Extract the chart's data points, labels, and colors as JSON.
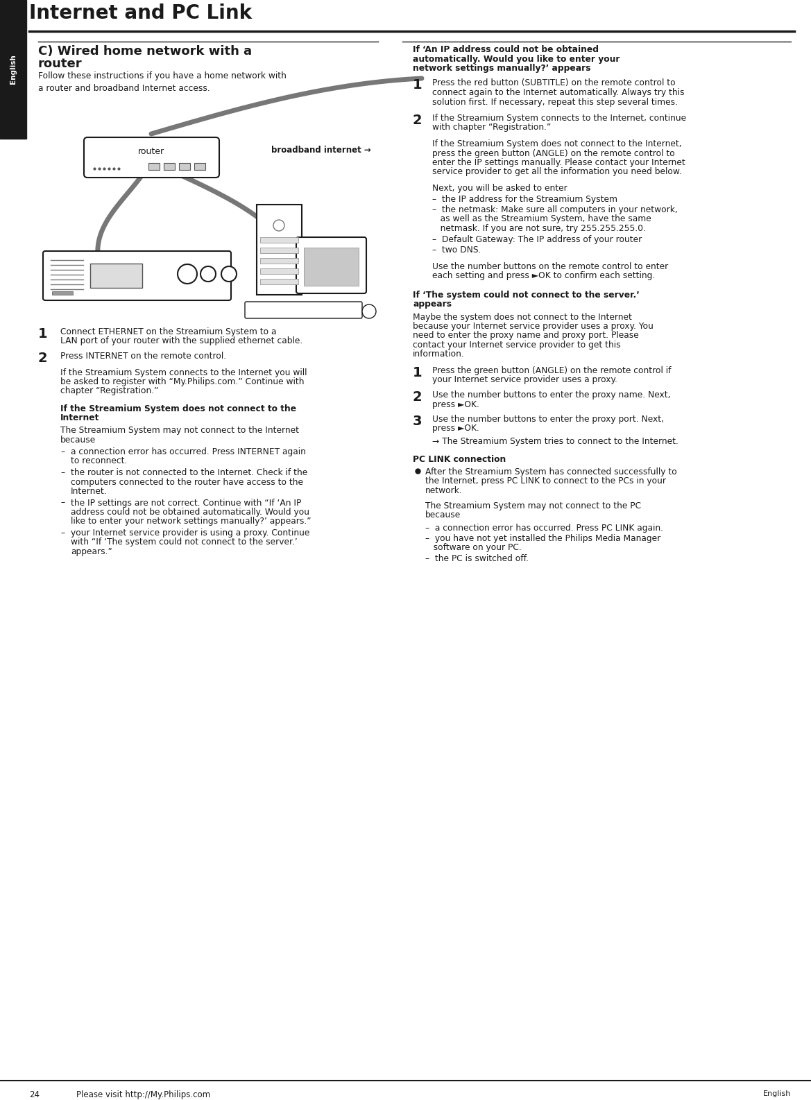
{
  "page_title": "Internet and PC Link",
  "bg_color": "#ffffff",
  "sidebar_color": "#1a1a1a",
  "sidebar_text": "English",
  "section_title_line1": "C) Wired home network with a",
  "section_title_line2": "router",
  "section_subtitle": "Follow these instructions if you have a home network with\na router and broadband Internet access.",
  "diagram_label_router": "router",
  "diagram_label_broadband": "broadband internet →",
  "step1_num": "1",
  "step1_lines": [
    "Connect ETHERNET on the Streamium System to a",
    "LAN port of your router with the supplied ethernet cable."
  ],
  "step2_num": "2",
  "step2_text": "Press INTERNET on the remote control.",
  "step2_para1_lines": [
    "If the Streamium System connects to the Internet you will",
    "be asked to register with “My.Philips.com.” Continue with",
    "chapter “Registration.”"
  ],
  "bold_head_lines": [
    "If the Streamium System does not connect to the",
    "Internet"
  ],
  "step2_para2": "The Streamium System may not connect to the Internet\nbecause",
  "bullet1_lines": [
    "a connection error has occurred. Press INTERNET again",
    "to reconnect."
  ],
  "bullet2_lines": [
    "the router is not connected to the Internet. Check if the",
    "computers connected to the router have access to the",
    "Internet."
  ],
  "bullet3_lines": [
    "the IP settings are not correct. Continue with “If ‘An IP",
    "address could not be obtained automatically. Would you",
    "like to enter your network settings manually?’ appears.”"
  ],
  "bullet4_lines": [
    "your Internet service provider is using a proxy. Continue",
    "with “If ‘The system could not connect to the server.’",
    "appears.”"
  ],
  "right_head1_lines": [
    "If ‘An IP address could not be obtained",
    "automatically. Would you like to enter your",
    "network settings manually?’ appears"
  ],
  "right_step1_num": "1",
  "right_step1_lines": [
    "Press the red button (SUBTITLE) on the remote control to",
    "connect again to the Internet automatically. Always try this",
    "solution first. If necessary, repeat this step several times."
  ],
  "right_step2_num": "2",
  "right_step2_lines": [
    "If the Streamium System connects to the Internet, continue",
    "with chapter “Registration.”"
  ],
  "right_step2_para_lines": [
    "If the Streamium System does not connect to the Internet,",
    "press the green button (ANGLE) on the remote control to",
    "enter the IP settings manually. Please contact your Internet",
    "service provider to get all the information you need below."
  ],
  "right_step2_para2": "Next, you will be asked to enter",
  "right_bullet1": "–  the IP address for the Streamium System",
  "right_bullet2_lines": [
    "–  the netmask: Make sure all computers in your network,",
    "   as well as the Streamium System, have the same",
    "   netmask. If you are not sure, try 255.255.255.0."
  ],
  "right_bullet3": "–  Default Gateway: The IP address of your router",
  "right_bullet4": "–  two DNS.",
  "right_para3_lines": [
    "Use the number buttons on the remote control to enter",
    "each setting and press ►OK to confirm each setting."
  ],
  "right_head2_lines": [
    "If ‘The system could not connect to the server.’",
    "appears"
  ],
  "right_head2_para_lines": [
    "Maybe the system does not connect to the Internet",
    "because your Internet service provider uses a proxy. You",
    "need to enter the proxy name and proxy port. Please",
    "contact your Internet service provider to get this",
    "information."
  ],
  "right2_step1_num": "1",
  "right2_step1_lines": [
    "Press the green button (ANGLE) on the remote control if",
    "your Internet service provider uses a proxy."
  ],
  "right2_step2_num": "2",
  "right2_step2_lines": [
    "Use the number buttons to enter the proxy name. Next,",
    "press ►OK."
  ],
  "right2_step3_num": "3",
  "right2_step3_lines": [
    "Use the number buttons to enter the proxy port. Next,",
    "press ►OK."
  ],
  "right2_arrow_text": "→ The Streamium System tries to connect to the Internet.",
  "right_head3": "PC LINK connection",
  "right_bullet_pc_lines": [
    "After the Streamium System has connected successfully to",
    "the Internet, press PC LINK to connect to the PCs in your",
    "network."
  ],
  "right_para_pc_lines": [
    "The Streamium System may not connect to the PC",
    "because"
  ],
  "right_pc_bullet1": "–  a connection error has occurred. Press PC LINK again.",
  "right_pc_bullet2_lines": [
    "–  you have not yet installed the Philips Media Manager",
    "   software on your PC."
  ],
  "right_pc_bullet3": "–  the PC is switched off.",
  "footer_num": "24",
  "footer_text": "Please visit http://My.Philips.com",
  "text_color": "#1a1a1a"
}
